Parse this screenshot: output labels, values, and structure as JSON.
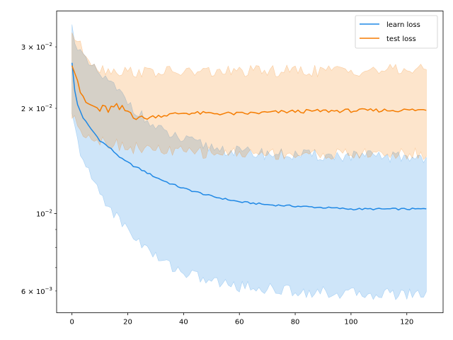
{
  "chart_data": {
    "type": "line",
    "title": "",
    "xlabel": "",
    "ylabel": "",
    "yscale": "log",
    "xlim": [
      -5.5,
      133
    ],
    "ylim": [
      0.0052,
      0.038
    ],
    "x_ticks": [
      0,
      20,
      40,
      60,
      80,
      100,
      120
    ],
    "x_tick_labels": [
      "0",
      "20",
      "40",
      "60",
      "80",
      "100",
      "120"
    ],
    "y_major_ticks": [
      0.01
    ],
    "y_major_tick_labels": [
      "10^{-2}"
    ],
    "y_minor_ticks": [
      0.006,
      0.007,
      0.008,
      0.009,
      0.02,
      0.03
    ],
    "y_minor_tick_labels": [
      "6×10^{-3}",
      "",
      "",
      "",
      "2×10^{-2}",
      "3×10^{-2}"
    ],
    "grid": false,
    "legend_position": "top-right",
    "series": [
      {
        "name": "learn loss",
        "color": "#1f88e5",
        "x_range": [
          0,
          127
        ],
        "mean_anchors": [
          [
            0,
            0.027
          ],
          [
            1,
            0.0225
          ],
          [
            2,
            0.0205
          ],
          [
            4,
            0.0188
          ],
          [
            6,
            0.0178
          ],
          [
            8,
            0.017
          ],
          [
            10,
            0.0162
          ],
          [
            14,
            0.0153
          ],
          [
            18,
            0.0143
          ],
          [
            22,
            0.0137
          ],
          [
            26,
            0.0132
          ],
          [
            30,
            0.0127
          ],
          [
            35,
            0.0122
          ],
          [
            40,
            0.0118
          ],
          [
            45,
            0.0115
          ],
          [
            50,
            0.0112
          ],
          [
            55,
            0.011
          ],
          [
            60,
            0.0108
          ],
          [
            70,
            0.0106
          ],
          [
            80,
            0.0105
          ],
          [
            90,
            0.0104
          ],
          [
            100,
            0.0103
          ],
          [
            110,
            0.0103
          ],
          [
            127,
            0.0103
          ]
        ],
        "upper_anchors": [
          [
            0,
            0.034
          ],
          [
            2,
            0.03
          ],
          [
            5,
            0.027
          ],
          [
            10,
            0.025
          ],
          [
            15,
            0.023
          ],
          [
            20,
            0.021
          ],
          [
            25,
            0.019
          ],
          [
            30,
            0.0175
          ],
          [
            40,
            0.0162
          ],
          [
            50,
            0.0155
          ],
          [
            60,
            0.015
          ],
          [
            80,
            0.0147
          ],
          [
            100,
            0.0146
          ],
          [
            127,
            0.0145
          ]
        ],
        "lower_anchors": [
          [
            0,
            0.019
          ],
          [
            2,
            0.016
          ],
          [
            5,
            0.0135
          ],
          [
            10,
            0.0115
          ],
          [
            15,
            0.01
          ],
          [
            20,
            0.009
          ],
          [
            25,
            0.0082
          ],
          [
            30,
            0.0075
          ],
          [
            40,
            0.0068
          ],
          [
            50,
            0.0064
          ],
          [
            60,
            0.0062
          ],
          [
            80,
            0.006
          ],
          [
            100,
            0.0059
          ],
          [
            127,
            0.0059
          ]
        ]
      },
      {
        "name": "test loss",
        "color": "#f57c00",
        "x_range": [
          0,
          127
        ],
        "mean_anchors": [
          [
            0,
            0.0265
          ],
          [
            2,
            0.024
          ],
          [
            4,
            0.021
          ],
          [
            6,
            0.0205
          ],
          [
            10,
            0.0198
          ],
          [
            16,
            0.02
          ],
          [
            20,
            0.0196
          ],
          [
            26,
            0.0187
          ],
          [
            30,
            0.019
          ],
          [
            40,
            0.0194
          ],
          [
            60,
            0.0193
          ],
          [
            80,
            0.0196
          ],
          [
            100,
            0.0197
          ],
          [
            127,
            0.0198
          ]
        ],
        "upper_anchors": [
          [
            0,
            0.033
          ],
          [
            3,
            0.03
          ],
          [
            6,
            0.028
          ],
          [
            10,
            0.026
          ],
          [
            20,
            0.0255
          ],
          [
            40,
            0.0254
          ],
          [
            60,
            0.0255
          ],
          [
            80,
            0.0256
          ],
          [
            100,
            0.0257
          ],
          [
            127,
            0.0258
          ]
        ],
        "lower_anchors": [
          [
            0,
            0.019
          ],
          [
            3,
            0.0175
          ],
          [
            6,
            0.0168
          ],
          [
            10,
            0.0162
          ],
          [
            20,
            0.0155
          ],
          [
            30,
            0.0152
          ],
          [
            40,
            0.015
          ],
          [
            60,
            0.0149
          ],
          [
            80,
            0.0148
          ],
          [
            100,
            0.0148
          ],
          [
            127,
            0.0148
          ]
        ]
      }
    ]
  }
}
